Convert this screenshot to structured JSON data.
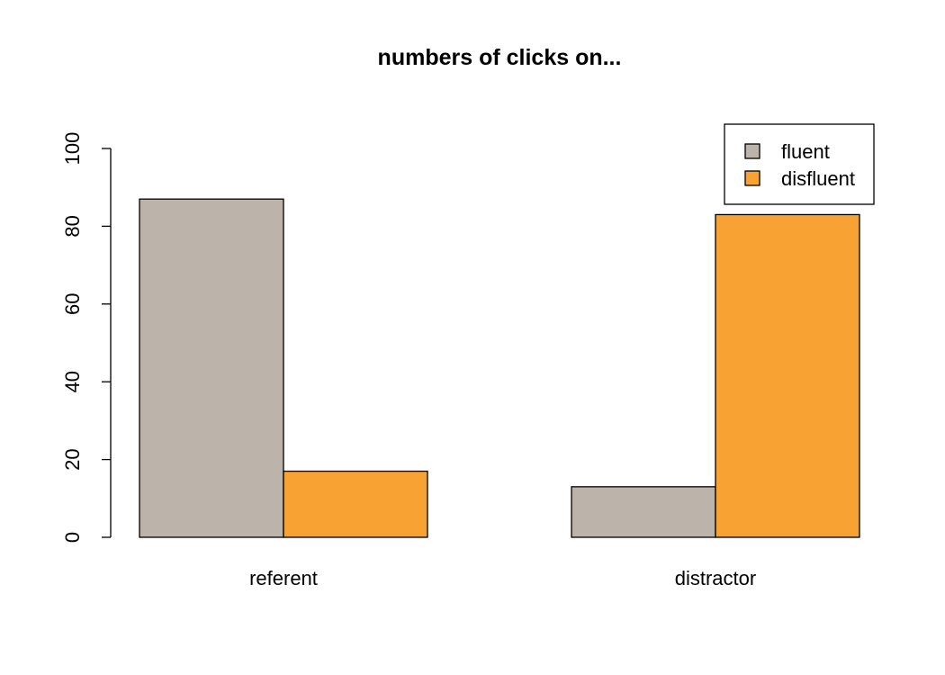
{
  "chart_data": {
    "type": "bar",
    "title": "numbers of clicks on...",
    "xlabel": "",
    "ylabel": "",
    "categories": [
      "referent",
      "distractor"
    ],
    "series": [
      {
        "name": "fluent",
        "values": [
          87,
          13
        ],
        "color": "#BCB3AA"
      },
      {
        "name": "disfluent",
        "values": [
          17,
          83
        ],
        "color": "#F7A233"
      }
    ],
    "ylim": [
      0,
      100
    ],
    "yticks": [
      0,
      20,
      40,
      60,
      80,
      100
    ],
    "grid": false,
    "legend_position": "top-right"
  }
}
